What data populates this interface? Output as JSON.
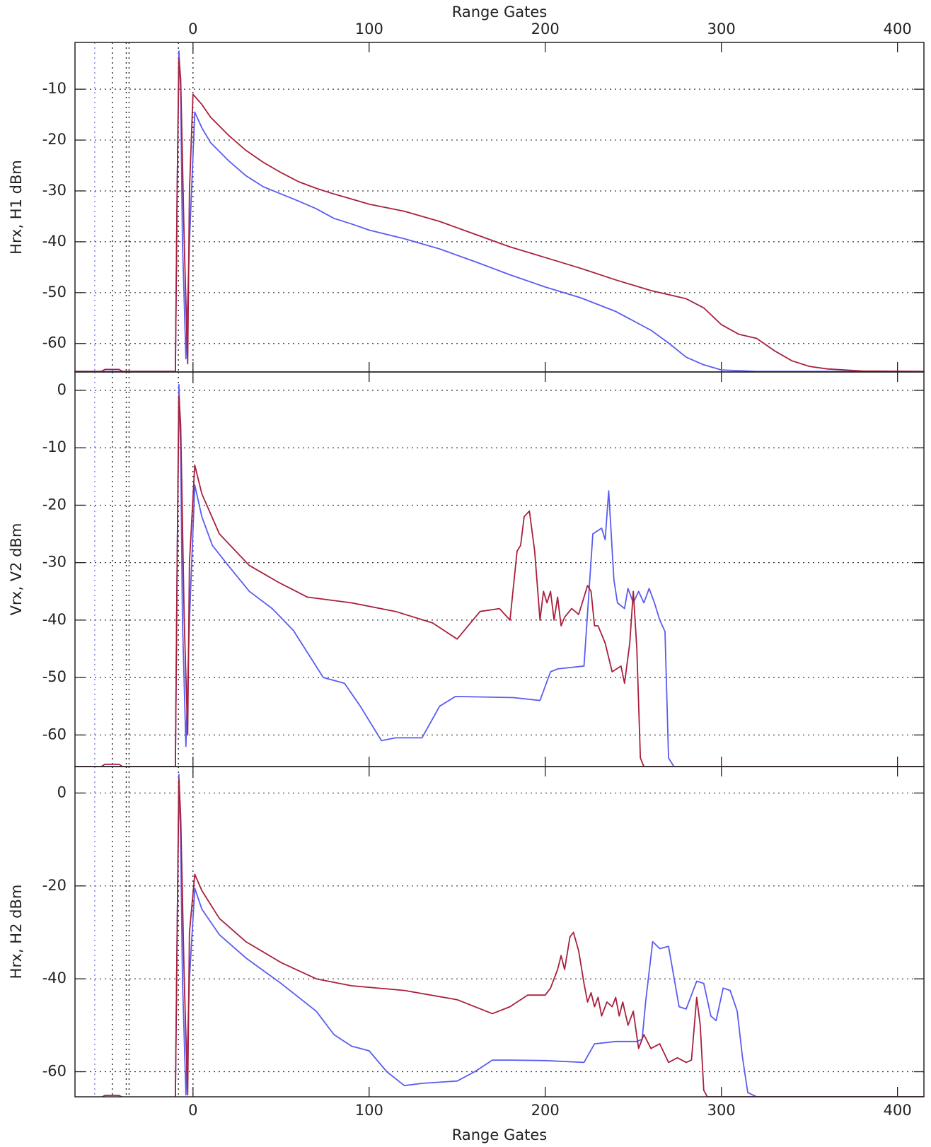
{
  "chart_data": [
    {
      "type": "line",
      "xlabel_top": "Range Gates",
      "ylabel": "Hrx, H1 dBm",
      "xlim": [
        -67,
        415
      ],
      "xticks": [
        0,
        100,
        200,
        300,
        400
      ],
      "ylim": [
        -65.6,
        -0.8
      ],
      "yticks": [
        -60,
        -50,
        -40,
        -30,
        -20,
        -10
      ],
      "grid": true,
      "vlines": [
        -55.8,
        -45.8,
        -37.9,
        -36.3,
        -8.3,
        0
      ],
      "vline_colors": [
        "#7f85e0",
        "#222222",
        "#222222",
        "#222222",
        "#222222",
        "#222222"
      ],
      "series": [
        {
          "color": "#5a5cf0",
          "x": [
            -67,
            -10,
            -9,
            -8,
            -7,
            -6,
            -4,
            -2,
            1,
            5,
            10,
            20,
            30,
            40,
            50,
            60,
            70,
            80,
            90,
            100,
            120,
            140,
            160,
            180,
            200,
            220,
            240,
            260,
            270,
            280,
            290,
            300,
            320,
            415
          ],
          "values": [
            -65.5,
            -65.5,
            -30,
            -2.5,
            -10,
            -40,
            -63,
            -40,
            -14.5,
            -17.6,
            -20.5,
            -24,
            -27,
            -29.2,
            -30.6,
            -32,
            -33.5,
            -35.4,
            -36.5,
            -37.7,
            -39.4,
            -41.4,
            -43.9,
            -46.5,
            -48.9,
            -51,
            -53.7,
            -57.4,
            -59.9,
            -62.7,
            -64.2,
            -65.2,
            -65.5,
            -65.5
          ]
        },
        {
          "color": "#a8203c",
          "x": [
            -67,
            -52,
            -50,
            -42,
            -40,
            -10,
            -9,
            -8,
            -7,
            -5,
            -3,
            -2,
            0,
            5,
            10,
            20,
            30,
            40,
            50,
            60,
            70,
            80,
            100,
            120,
            140,
            160,
            180,
            200,
            220,
            240,
            260,
            280,
            290,
            300,
            310,
            320,
            330,
            340,
            350,
            360,
            380,
            415
          ],
          "values": [
            -65.5,
            -65.5,
            -65.1,
            -65.1,
            -65.5,
            -65.5,
            -30,
            -4,
            -8,
            -40,
            -64,
            -30,
            -11,
            -13,
            -15.5,
            -19,
            -22,
            -24.4,
            -26.4,
            -28.2,
            -29.5,
            -30.6,
            -32.6,
            -34,
            -36,
            -38.5,
            -41,
            -43.1,
            -45.2,
            -47.5,
            -49.6,
            -51.2,
            -53,
            -56.3,
            -58.2,
            -59,
            -61.4,
            -63.4,
            -64.5,
            -65,
            -65.4,
            -65.5
          ]
        }
      ]
    },
    {
      "type": "line",
      "ylabel": "Vrx, V2 dBm",
      "xlim": [
        -67,
        415
      ],
      "xticks": [
        0,
        100,
        200,
        300,
        400
      ],
      "ylim": [
        -65.5,
        3.2
      ],
      "yticks": [
        -60,
        -50,
        -40,
        -30,
        -20,
        -10,
        0
      ],
      "grid": true,
      "vlines": [
        -55.8,
        -45.8,
        -37.9,
        -36.3,
        -8.3,
        0
      ],
      "vline_colors": [
        "#7f85e0",
        "#222222",
        "#222222",
        "#222222",
        "#222222",
        "#222222"
      ],
      "series": [
        {
          "color": "#5a5cf0",
          "x": [
            -67,
            -10,
            -9,
            -8,
            -7,
            -6,
            -4,
            -2,
            1,
            5,
            11,
            20,
            32,
            45,
            57,
            74,
            86,
            95,
            107,
            115,
            130,
            140,
            149,
            182,
            197,
            203,
            207,
            222,
            227,
            232,
            234,
            236,
            239,
            241,
            245,
            247,
            250,
            253,
            256,
            259,
            262,
            265,
            268,
            270,
            273,
            415
          ],
          "values": [
            -65.5,
            -65.5,
            -30,
            1,
            -10,
            -40,
            -62,
            -40,
            -16.5,
            -22,
            -27,
            -30.5,
            -35,
            -38,
            -41.8,
            -50,
            -51,
            -55,
            -61,
            -60.5,
            -60.5,
            -55,
            -53.3,
            -53.5,
            -54,
            -49,
            -48.5,
            -48,
            -25,
            -24,
            -26,
            -17.5,
            -33,
            -37,
            -38,
            -34.5,
            -37,
            -35,
            -37,
            -34.5,
            -37,
            -40,
            -42,
            -64,
            -65.5,
            -65.5
          ]
        },
        {
          "color": "#a8203c",
          "x": [
            -67,
            -52,
            -50,
            -42,
            -40,
            -10,
            -9,
            -8,
            -7,
            -5,
            -3,
            -2,
            1,
            5,
            15,
            32,
            49,
            65,
            90,
            115,
            136,
            150,
            163,
            174,
            180,
            184,
            186,
            188,
            191,
            194,
            197,
            199,
            201,
            203,
            205,
            207,
            209,
            211,
            215,
            219,
            224,
            226,
            228,
            230,
            234,
            238,
            243,
            245,
            248,
            250,
            252,
            254,
            256,
            415
          ],
          "values": [
            -65.5,
            -65.5,
            -65.1,
            -65.1,
            -65.5,
            -65.5,
            -30,
            -1,
            -6,
            -40,
            -60,
            -30,
            -13,
            -18,
            -25,
            -30.5,
            -33.5,
            -36,
            -37,
            -38.5,
            -40.5,
            -43.3,
            -38.5,
            -38,
            -40,
            -28,
            -27,
            -22,
            -21,
            -28,
            -40,
            -35,
            -37,
            -35,
            -40,
            -36,
            -41,
            -39.5,
            -38,
            -39,
            -34,
            -35,
            -41,
            -41,
            -44,
            -49,
            -48,
            -51,
            -44,
            -35,
            -45,
            -64,
            -65.5,
            -65.5
          ]
        }
      ]
    },
    {
      "type": "line",
      "xlabel": "Range Gates",
      "ylabel": "Hrx, H2 dBm",
      "xlim": [
        -67,
        415
      ],
      "xticks": [
        0,
        100,
        200,
        300,
        400
      ],
      "ylim": [
        -65.4,
        5.7
      ],
      "yticks": [
        -60,
        -40,
        -20,
        0
      ],
      "grid": true,
      "vlines": [
        -55.8,
        -45.8,
        -37.9,
        -36.3,
        -8.3,
        0
      ],
      "vline_colors": [
        "#7f85e0",
        "#222222",
        "#222222",
        "#222222",
        "#222222",
        "#222222"
      ],
      "series": [
        {
          "color": "#5a5cf0",
          "x": [
            -67,
            -10,
            -9,
            -8,
            -7,
            -6,
            -4,
            -2,
            1,
            5,
            15,
            30,
            50,
            70,
            80,
            90,
            100,
            110,
            120,
            130,
            150,
            160,
            170,
            180,
            200,
            222,
            228,
            240,
            252,
            255,
            257,
            261,
            265,
            270,
            276,
            280,
            286,
            290,
            294,
            297,
            301,
            305,
            309,
            312,
            315,
            320,
            415
          ],
          "values": [
            -65.5,
            -65.5,
            -30,
            4,
            -10,
            -40,
            -65,
            -40,
            -20.5,
            -25,
            -30.5,
            -35.5,
            -41,
            -47,
            -52,
            -54.5,
            -55.5,
            -60,
            -63,
            -62.5,
            -62,
            -60,
            -57.5,
            -57.5,
            -57.6,
            -58,
            -54,
            -53.5,
            -53.5,
            -53,
            -45,
            -32,
            -33.5,
            -33,
            -46,
            -46.5,
            -40.5,
            -41,
            -48,
            -49,
            -42,
            -42.5,
            -47,
            -57,
            -64.5,
            -65.4,
            -65.4
          ]
        },
        {
          "color": "#a8203c",
          "x": [
            -67,
            -52,
            -50,
            -42,
            -40,
            -10,
            -9,
            -8,
            -7,
            -5,
            -3,
            -2,
            1,
            5,
            15,
            30,
            50,
            70,
            90,
            120,
            150,
            170,
            180,
            190,
            200,
            203,
            207,
            209,
            211,
            214,
            216,
            219,
            222,
            224,
            226,
            228,
            230,
            232,
            235,
            238,
            240,
            242,
            244,
            247,
            250,
            253,
            256,
            260,
            265,
            270,
            275,
            280,
            283,
            286,
            288,
            290,
            292,
            415
          ],
          "values": [
            -65.5,
            -65.5,
            -65.1,
            -65.1,
            -65.5,
            -65.5,
            -30,
            3,
            -5,
            -40,
            -65,
            -30,
            -17.5,
            -21,
            -27,
            -32,
            -36.5,
            -40,
            -41.5,
            -42.5,
            -44.5,
            -47.5,
            -46,
            -43.5,
            -43.5,
            -42,
            -38,
            -35,
            -38,
            -31,
            -30,
            -34,
            -41,
            -45,
            -43,
            -46,
            -44,
            -48,
            -45,
            -46,
            -44,
            -48,
            -45,
            -50,
            -47,
            -55,
            -52,
            -55,
            -54,
            -58,
            -57,
            -58,
            -57.5,
            -44,
            -50,
            -64,
            -65.4,
            -65.4
          ]
        }
      ]
    }
  ]
}
